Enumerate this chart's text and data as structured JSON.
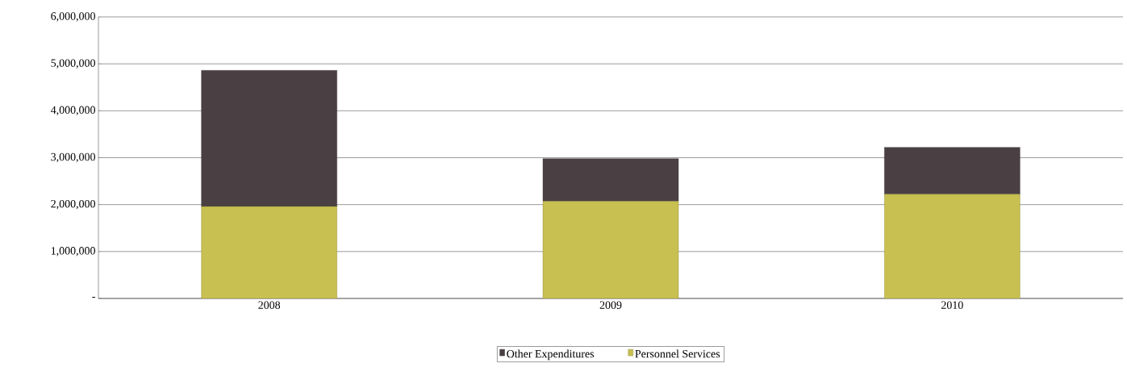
{
  "chart_data": {
    "type": "bar",
    "stacked": true,
    "categories": [
      "2008",
      "2009",
      "2010"
    ],
    "series": [
      {
        "name": "Personnel Services",
        "color": "#c8c050",
        "values": [
          1960000,
          2070000,
          2220000
        ]
      },
      {
        "name": "Other Expenditures",
        "color": "#4a4044",
        "values": [
          2900000,
          910000,
          1000000
        ]
      }
    ],
    "ylim": [
      0,
      6000000
    ],
    "yticks": [
      {
        "value": 0,
        "label": "-"
      },
      {
        "value": 1000000,
        "label": "1,000,000"
      },
      {
        "value": 2000000,
        "label": "2,000,000"
      },
      {
        "value": 3000000,
        "label": "3,000,000"
      },
      {
        "value": 4000000,
        "label": "4,000,000"
      },
      {
        "value": 5000000,
        "label": "5,000,000"
      },
      {
        "value": 6000000,
        "label": "6,000,000"
      }
    ],
    "grid": "y",
    "legend": "bottom"
  }
}
